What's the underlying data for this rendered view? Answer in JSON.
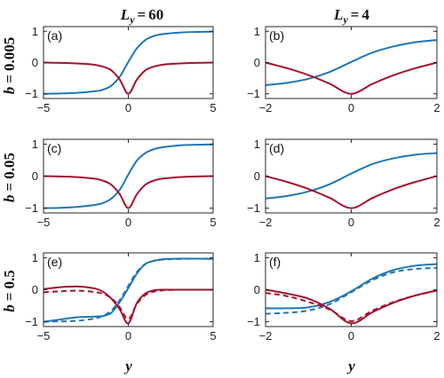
{
  "figure": {
    "col_titles": [
      {
        "var": "L",
        "sub": "y",
        "rel": "=",
        "val": "60"
      },
      {
        "var": "L",
        "sub": "y",
        "rel": "=",
        "val": "4"
      }
    ],
    "row_titles": [
      {
        "var": "b",
        "rel": "=",
        "val": "0.005"
      },
      {
        "var": "b",
        "rel": "=",
        "val": "0.05"
      },
      {
        "var": "b",
        "rel": "=",
        "val": "0.5"
      }
    ],
    "xlabel": "y"
  },
  "colors": {
    "blue": "#1f77b4",
    "red": "#a2142f",
    "axis": "#262626"
  },
  "chart_data": [
    {
      "type": "line",
      "panel": "(a)",
      "row": 0,
      "col": 0,
      "xlim": [
        -5,
        5
      ],
      "ylim": [
        -1.15,
        1.15
      ],
      "xticks": [
        "-5",
        "0",
        "5"
      ],
      "yticks": [
        "-1",
        "0",
        "1"
      ],
      "series": [
        {
          "color": "blue",
          "style": "solid",
          "x": [
            -5,
            -4,
            -3,
            -2,
            -1.5,
            -1,
            -0.5,
            0,
            0.5,
            1,
            1.5,
            2,
            3,
            4,
            5
          ],
          "y": [
            -1.0,
            -0.99,
            -0.97,
            -0.92,
            -0.87,
            -0.74,
            -0.45,
            0.02,
            0.45,
            0.72,
            0.85,
            0.91,
            0.96,
            0.98,
            0.99
          ]
        },
        {
          "color": "red",
          "style": "solid",
          "x": [
            -5,
            -4,
            -3,
            -2,
            -1.5,
            -1,
            -0.5,
            0,
            0.5,
            1,
            1.5,
            2,
            3,
            4,
            5
          ],
          "y": [
            0.0,
            -0.01,
            -0.03,
            -0.07,
            -0.13,
            -0.25,
            -0.55,
            -1.0,
            -0.55,
            -0.25,
            -0.13,
            -0.07,
            -0.03,
            -0.01,
            0.0
          ]
        }
      ]
    },
    {
      "type": "line",
      "panel": "(b)",
      "row": 0,
      "col": 1,
      "xlim": [
        -2,
        2
      ],
      "ylim": [
        -1.15,
        1.15
      ],
      "xticks": [
        "-2",
        "0",
        "2"
      ],
      "yticks": [
        "-1",
        "0",
        "1"
      ],
      "series": [
        {
          "color": "blue",
          "style": "solid",
          "x": [
            -2,
            -1.5,
            -1,
            -0.5,
            0,
            0.5,
            1,
            1.5,
            2
          ],
          "y": [
            -0.72,
            -0.65,
            -0.52,
            -0.3,
            0.02,
            0.32,
            0.52,
            0.65,
            0.72
          ]
        },
        {
          "color": "red",
          "style": "solid",
          "x": [
            -2,
            -1.5,
            -1,
            -0.5,
            0,
            0.5,
            1,
            1.5,
            2
          ],
          "y": [
            0.0,
            -0.18,
            -0.4,
            -0.68,
            -1.0,
            -0.68,
            -0.4,
            -0.18,
            0.0
          ]
        }
      ]
    },
    {
      "type": "line",
      "panel": "(c)",
      "row": 1,
      "col": 0,
      "xlim": [
        -5,
        5
      ],
      "ylim": [
        -1.15,
        1.15
      ],
      "xticks": [
        "-5",
        "0",
        "5"
      ],
      "yticks": [
        "-1",
        "0",
        "1"
      ],
      "series": [
        {
          "color": "blue",
          "style": "solid",
          "x": [
            -5,
            -4,
            -3,
            -2,
            -1.5,
            -1,
            -0.5,
            0,
            0.5,
            1,
            1.5,
            2,
            3,
            4,
            5
          ],
          "y": [
            -1.0,
            -0.99,
            -0.96,
            -0.9,
            -0.84,
            -0.7,
            -0.42,
            0.05,
            0.48,
            0.72,
            0.84,
            0.9,
            0.96,
            0.98,
            0.99
          ]
        },
        {
          "color": "red",
          "style": "solid",
          "x": [
            -5,
            -4,
            -3,
            -2,
            -1.5,
            -1,
            -0.5,
            0,
            0.5,
            1,
            1.5,
            2,
            3,
            4,
            5
          ],
          "y": [
            0.0,
            -0.01,
            -0.03,
            -0.08,
            -0.14,
            -0.27,
            -0.57,
            -1.0,
            -0.57,
            -0.27,
            -0.14,
            -0.08,
            -0.03,
            -0.01,
            0.0
          ]
        }
      ]
    },
    {
      "type": "line",
      "panel": "(d)",
      "row": 1,
      "col": 1,
      "xlim": [
        -2,
        2
      ],
      "ylim": [
        -1.15,
        1.15
      ],
      "xticks": [
        "-2",
        "0",
        "2"
      ],
      "yticks": [
        "-1",
        "0",
        "1"
      ],
      "series": [
        {
          "color": "blue",
          "style": "solid",
          "x": [
            -2,
            -1.5,
            -1,
            -0.5,
            0,
            0.5,
            1,
            1.5,
            2
          ],
          "y": [
            -0.7,
            -0.62,
            -0.48,
            -0.25,
            0.08,
            0.38,
            0.56,
            0.67,
            0.72
          ]
        },
        {
          "color": "red",
          "style": "solid",
          "x": [
            -2,
            -1.5,
            -1,
            -0.5,
            0,
            0.5,
            1,
            1.5,
            2
          ],
          "y": [
            0.0,
            -0.18,
            -0.4,
            -0.68,
            -1.0,
            -0.68,
            -0.4,
            -0.18,
            0.0
          ]
        }
      ]
    },
    {
      "type": "line",
      "panel": "(e)",
      "row": 2,
      "col": 0,
      "xlim": [
        -5,
        5
      ],
      "ylim": [
        -1.15,
        1.15
      ],
      "xticks": [
        "-5",
        "0",
        "5"
      ],
      "yticks": [
        "-1",
        "0",
        "1"
      ],
      "series": [
        {
          "color": "blue",
          "style": "solid",
          "x": [
            -5,
            -4,
            -3,
            -2,
            -1.5,
            -1,
            -0.5,
            0,
            0.5,
            1,
            1.5,
            2,
            3,
            4,
            5
          ],
          "y": [
            -1.0,
            -0.93,
            -0.86,
            -0.84,
            -0.82,
            -0.72,
            -0.38,
            0.05,
            0.5,
            0.8,
            0.9,
            0.95,
            0.97,
            0.97,
            0.96
          ]
        },
        {
          "color": "red",
          "style": "solid",
          "x": [
            -5,
            -4,
            -3,
            -2,
            -1.5,
            -1,
            -0.5,
            0,
            0.5,
            1,
            1.5,
            2,
            3,
            4,
            5
          ],
          "y": [
            0.02,
            0.08,
            0.1,
            0.04,
            -0.06,
            -0.28,
            -0.62,
            -1.05,
            -0.42,
            -0.12,
            -0.02,
            0.0,
            0.0,
            0.0,
            0.0
          ]
        },
        {
          "color": "blue",
          "style": "dashed",
          "x": [
            -5,
            -4,
            -3,
            -2,
            -1.5,
            -1,
            -0.5,
            0,
            0.5,
            1,
            1.5,
            2,
            3,
            4,
            5
          ],
          "y": [
            -1.0,
            -0.99,
            -0.97,
            -0.9,
            -0.82,
            -0.65,
            -0.32,
            0.12,
            0.55,
            0.8,
            0.9,
            0.94,
            0.96,
            0.97,
            0.97
          ]
        },
        {
          "color": "red",
          "style": "dashed",
          "x": [
            -5,
            -4,
            -3,
            -2,
            -1.5,
            -1,
            -0.5,
            0,
            0.5,
            1,
            1.5,
            2,
            3,
            4,
            5
          ],
          "y": [
            -0.08,
            -0.05,
            -0.03,
            -0.07,
            -0.13,
            -0.26,
            -0.55,
            -0.92,
            -0.45,
            -0.17,
            -0.06,
            -0.02,
            0.0,
            0.0,
            0.0
          ]
        }
      ]
    },
    {
      "type": "line",
      "panel": "(f)",
      "row": 2,
      "col": 1,
      "xlim": [
        -2,
        2
      ],
      "ylim": [
        -1.15,
        1.15
      ],
      "xticks": [
        "-2",
        "0",
        "2"
      ],
      "yticks": [
        "-1",
        "0",
        "1"
      ],
      "series": [
        {
          "color": "blue",
          "style": "solid",
          "x": [
            -2,
            -1.5,
            -1,
            -0.5,
            0,
            0.5,
            1,
            1.5,
            2
          ],
          "y": [
            -0.58,
            -0.58,
            -0.55,
            -0.38,
            -0.05,
            0.35,
            0.62,
            0.75,
            0.8
          ]
        },
        {
          "color": "red",
          "style": "solid",
          "x": [
            -2,
            -1.5,
            -1,
            -0.5,
            0,
            0.5,
            1,
            1.5,
            2
          ],
          "y": [
            0.0,
            -0.12,
            -0.28,
            -0.6,
            -1.05,
            -0.7,
            -0.4,
            -0.18,
            -0.02
          ]
        },
        {
          "color": "blue",
          "style": "dashed",
          "x": [
            -2,
            -1.5,
            -1,
            -0.5,
            0,
            0.5,
            1,
            1.5,
            2
          ],
          "y": [
            -0.75,
            -0.72,
            -0.65,
            -0.45,
            -0.08,
            0.3,
            0.55,
            0.65,
            0.68
          ]
        },
        {
          "color": "red",
          "style": "dashed",
          "x": [
            -2,
            -1.5,
            -1,
            -0.5,
            0,
            0.5,
            1,
            1.5,
            2
          ],
          "y": [
            -0.1,
            -0.2,
            -0.38,
            -0.62,
            -0.98,
            -0.65,
            -0.38,
            -0.18,
            -0.03
          ]
        }
      ]
    }
  ]
}
